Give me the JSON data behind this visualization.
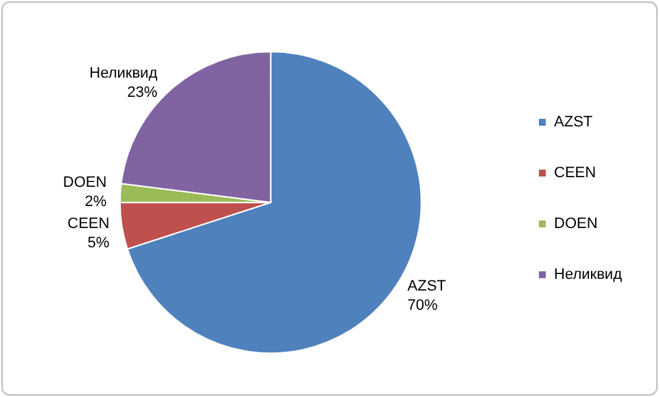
{
  "chart_data": {
    "type": "pie",
    "categories": [
      "AZST",
      "CEEN",
      "DOEN",
      "Неликвид"
    ],
    "values": [
      70,
      5,
      2,
      23
    ],
    "value_labels": [
      "70%",
      "5%",
      "2%",
      "23%"
    ],
    "colors": [
      "#4f81bd",
      "#c0504d",
      "#9bbb59",
      "#8064a2"
    ],
    "legend": "right"
  }
}
